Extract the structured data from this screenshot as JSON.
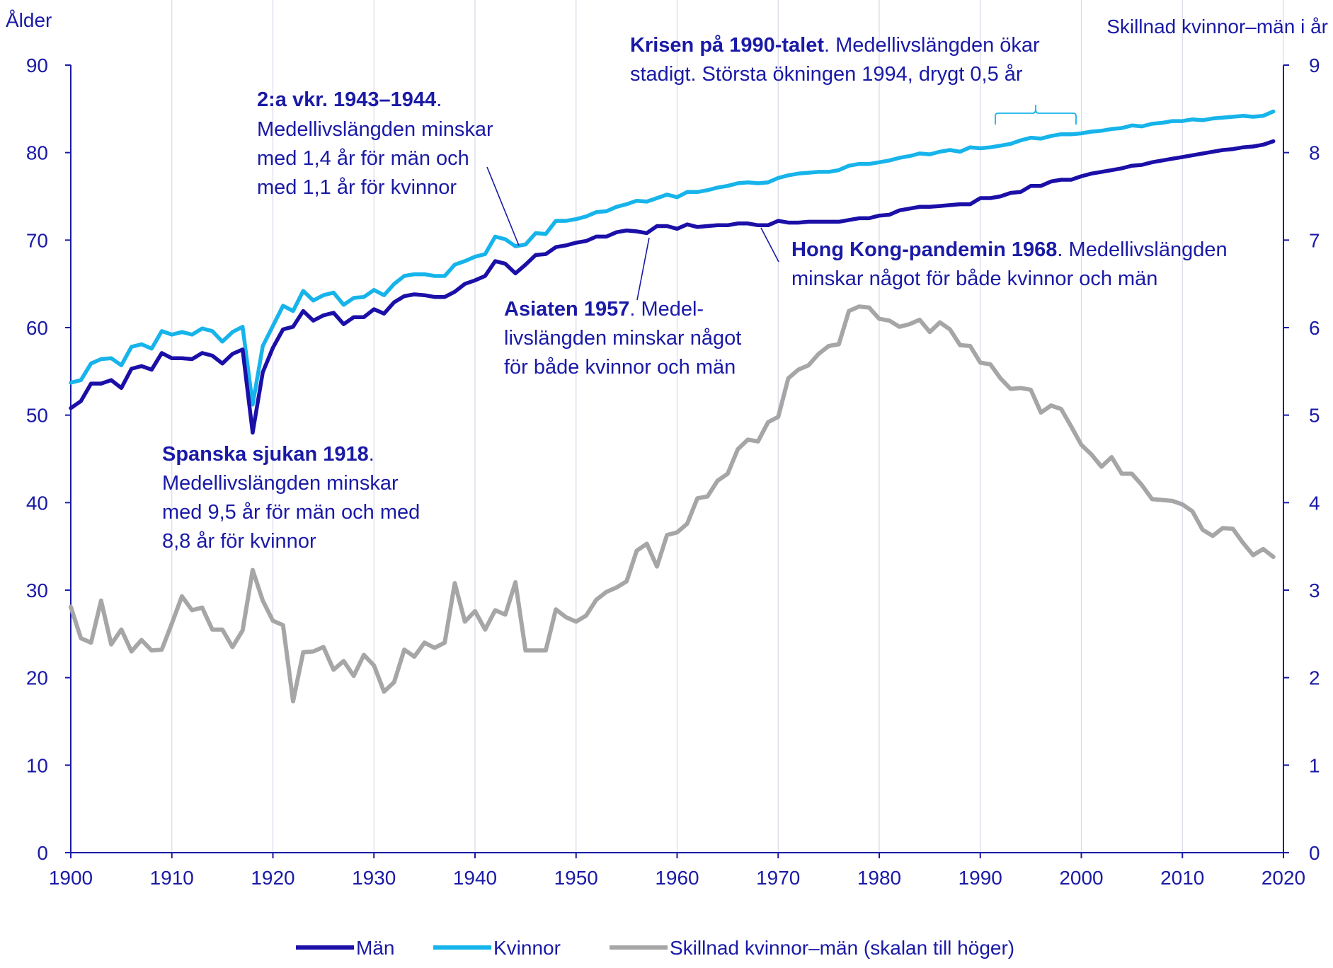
{
  "chart_data": {
    "type": "line",
    "left_axis_title": "Ålder",
    "right_axis_title": "Skillnad kvinnor–män i år",
    "ylim_left": [
      0,
      90
    ],
    "ylim_right": [
      0,
      9
    ],
    "xlim": [
      1900,
      2020
    ],
    "x_ticks": [
      "1900",
      "1910",
      "1920",
      "1930",
      "1940",
      "1950",
      "1960",
      "1970",
      "1980",
      "1990",
      "2000",
      "2010",
      "2020"
    ],
    "y_ticks_left": [
      "0",
      "10",
      "20",
      "30",
      "40",
      "50",
      "60",
      "70",
      "80",
      "90"
    ],
    "y_ticks_right": [
      "0",
      "1",
      "2",
      "3",
      "4",
      "5",
      "6",
      "7",
      "8",
      "9"
    ],
    "grid": "vertical gridlines at each 10-year tick",
    "legend_position": "bottom-center",
    "colors": {
      "men": "#1b0fa8",
      "women": "#16b4ea",
      "diff": "#a6a6a6",
      "text": "#1a1aa6"
    },
    "x": [
      1900,
      1901,
      1902,
      1903,
      1904,
      1905,
      1906,
      1907,
      1908,
      1909,
      1910,
      1911,
      1912,
      1913,
      1914,
      1915,
      1916,
      1917,
      1918,
      1919,
      1920,
      1921,
      1922,
      1923,
      1924,
      1925,
      1926,
      1927,
      1928,
      1929,
      1930,
      1931,
      1932,
      1933,
      1934,
      1935,
      1936,
      1937,
      1938,
      1939,
      1940,
      1941,
      1942,
      1943,
      1944,
      1945,
      1946,
      1947,
      1948,
      1949,
      1950,
      1951,
      1952,
      1953,
      1954,
      1955,
      1956,
      1957,
      1958,
      1959,
      1960,
      1961,
      1962,
      1963,
      1964,
      1965,
      1966,
      1967,
      1968,
      1969,
      1970,
      1971,
      1972,
      1973,
      1974,
      1975,
      1976,
      1977,
      1978,
      1979,
      1980,
      1981,
      1982,
      1983,
      1984,
      1985,
      1986,
      1987,
      1988,
      1989,
      1990,
      1991,
      1992,
      1993,
      1994,
      1995,
      1996,
      1997,
      1998,
      1999,
      2000,
      2001,
      2002,
      2003,
      2004,
      2005,
      2006,
      2007,
      2008,
      2009,
      2010,
      2011,
      2012,
      2013,
      2014,
      2015,
      2016,
      2017,
      2018,
      2019
    ],
    "series": [
      {
        "name": "Män",
        "axis": "left",
        "values": [
          50.8,
          51.6,
          53.6,
          53.6,
          54.0,
          53.1,
          55.3,
          55.6,
          55.2,
          57.1,
          56.5,
          56.5,
          56.4,
          57.1,
          56.8,
          55.9,
          57.0,
          57.5,
          48.0,
          54.9,
          57.7,
          59.8,
          60.1,
          61.9,
          60.8,
          61.4,
          61.7,
          60.4,
          61.2,
          61.2,
          62.1,
          61.6,
          62.9,
          63.6,
          63.8,
          63.7,
          63.5,
          63.5,
          64.1,
          65.0,
          65.4,
          65.9,
          67.6,
          67.3,
          66.2,
          67.2,
          68.3,
          68.4,
          69.2,
          69.4,
          69.7,
          69.9,
          70.4,
          70.4,
          70.9,
          71.1,
          71.0,
          70.8,
          71.6,
          71.6,
          71.3,
          71.8,
          71.5,
          71.6,
          71.7,
          71.7,
          71.9,
          71.9,
          71.7,
          71.7,
          72.2,
          72.0,
          72.0,
          72.1,
          72.1,
          72.1,
          72.1,
          72.3,
          72.5,
          72.5,
          72.8,
          72.9,
          73.4,
          73.6,
          73.8,
          73.8,
          73.9,
          74.0,
          74.1,
          74.1,
          74.8,
          74.8,
          75.0,
          75.4,
          75.5,
          76.2,
          76.2,
          76.7,
          76.9,
          76.9,
          77.3,
          77.6,
          77.8,
          78.0,
          78.2,
          78.5,
          78.6,
          78.9,
          79.1,
          79.3,
          79.5,
          79.7,
          79.9,
          80.1,
          80.3,
          80.4,
          80.6,
          80.7,
          80.9,
          81.3
        ]
      },
      {
        "name": "Kvinnor",
        "axis": "left",
        "values": [
          53.7,
          54.0,
          55.9,
          56.4,
          56.5,
          55.7,
          57.8,
          58.1,
          57.6,
          59.6,
          59.2,
          59.5,
          59.2,
          59.9,
          59.6,
          58.4,
          59.5,
          60.1,
          51.2,
          57.9,
          60.2,
          62.5,
          61.9,
          64.2,
          63.1,
          63.7,
          64.0,
          62.6,
          63.4,
          63.5,
          64.3,
          63.7,
          65.0,
          65.9,
          66.1,
          66.1,
          65.9,
          65.9,
          67.2,
          67.6,
          68.1,
          68.4,
          70.4,
          70.1,
          69.3,
          69.5,
          70.8,
          70.7,
          72.2,
          72.2,
          72.4,
          72.7,
          73.2,
          73.3,
          73.8,
          74.1,
          74.5,
          74.4,
          74.8,
          75.2,
          74.9,
          75.5,
          75.5,
          75.7,
          76.0,
          76.2,
          76.5,
          76.6,
          76.5,
          76.6,
          77.1,
          77.4,
          77.6,
          77.7,
          77.8,
          77.8,
          78.0,
          78.5,
          78.7,
          78.7,
          78.9,
          79.1,
          79.4,
          79.6,
          79.9,
          79.8,
          80.1,
          80.3,
          80.1,
          80.6,
          80.5,
          80.6,
          80.8,
          81.0,
          81.4,
          81.7,
          81.6,
          81.9,
          82.1,
          82.1,
          82.2,
          82.4,
          82.5,
          82.7,
          82.8,
          83.1,
          83.0,
          83.3,
          83.4,
          83.6,
          83.6,
          83.8,
          83.7,
          83.9,
          84.0,
          84.1,
          84.2,
          84.1,
          84.2,
          84.7
        ]
      },
      {
        "name": "Skillnad kvinnor–män (skalan till höger)",
        "axis": "right",
        "values": [
          2.81,
          2.45,
          2.4,
          2.88,
          2.38,
          2.55,
          2.3,
          2.43,
          2.31,
          2.32,
          2.62,
          2.93,
          2.77,
          2.8,
          2.55,
          2.55,
          2.35,
          2.54,
          3.23,
          2.88,
          2.65,
          2.6,
          1.73,
          2.29,
          2.3,
          2.35,
          2.09,
          2.19,
          2.02,
          2.26,
          2.14,
          1.84,
          1.95,
          2.32,
          2.24,
          2.4,
          2.34,
          2.4,
          3.08,
          2.64,
          2.76,
          2.55,
          2.77,
          2.72,
          3.09,
          2.31,
          2.31,
          2.31,
          2.78,
          2.69,
          2.64,
          2.71,
          2.89,
          2.98,
          3.03,
          3.1,
          3.45,
          3.53,
          3.27,
          3.63,
          3.66,
          3.76,
          4.05,
          4.07,
          4.25,
          4.33,
          4.61,
          4.72,
          4.7,
          4.92,
          4.98,
          5.42,
          5.52,
          5.57,
          5.7,
          5.79,
          5.81,
          6.19,
          6.24,
          6.23,
          6.1,
          6.08,
          6.01,
          6.04,
          6.09,
          5.95,
          6.06,
          5.98,
          5.8,
          5.79,
          5.6,
          5.58,
          5.42,
          5.3,
          5.31,
          5.29,
          5.03,
          5.11,
          5.07,
          4.87,
          4.66,
          4.55,
          4.41,
          4.52,
          4.33,
          4.33,
          4.2,
          4.04,
          4.03,
          4.02,
          3.98,
          3.9,
          3.69,
          3.62,
          3.71,
          3.7,
          3.54,
          3.4,
          3.47,
          3.38
        ]
      }
    ],
    "annotations": [
      {
        "bold": "Spanska sjukan 1918",
        "lines": [
          ".",
          "Medellivslängden minskar",
          "med 9,5 år för män och med",
          "8,8 år för kvinnor"
        ]
      },
      {
        "bold": "2:a vkr. 1943–1944",
        "lines": [
          ".",
          "Medellivslängden minskar",
          "med 1,4 år för män och",
          "med 1,1 år för kvinnor"
        ]
      },
      {
        "bold": "Asiaten 1957",
        "lines": [
          ". Medel-",
          "livslängden minskar något",
          "för både kvinnor och män"
        ]
      },
      {
        "bold": "Hong Kong-pandemin 1968",
        "lines": [
          ". Medellivslängden",
          "minskar något för både kvinnor och män"
        ]
      },
      {
        "bold": "Krisen på 1990-talet",
        "lines": [
          ". Medellivslängden ökar",
          "stadigt. Största ökningen 1994, drygt 0,5 år"
        ]
      }
    ]
  }
}
